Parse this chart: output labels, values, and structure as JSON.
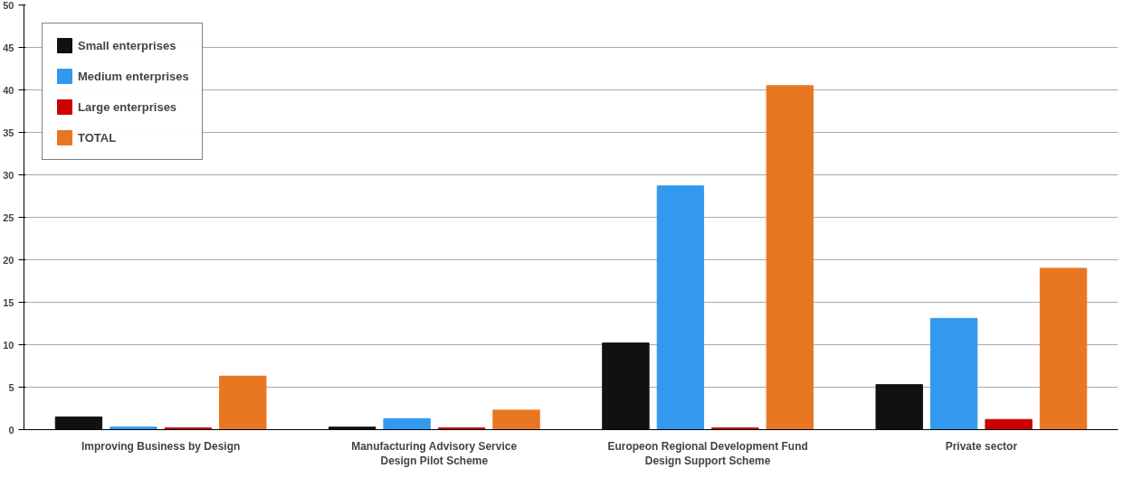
{
  "chart_data": {
    "type": "bar",
    "categories": [
      "Improving Business by Design",
      "Manufacturing Advisory Service Design Pilot Scheme",
      "Europeon Regional Development Fund Design Support Scheme",
      "Private sector"
    ],
    "series": [
      {
        "name": "Small enterprises",
        "color": "#111111",
        "values": [
          1.5,
          0.3,
          10.2,
          5.3
        ]
      },
      {
        "name": "Medium enterprises",
        "color": "#3399ee",
        "values": [
          0.3,
          1.3,
          28.7,
          13.1
        ]
      },
      {
        "name": "Large enterprises",
        "color": "#cc0000",
        "values": [
          0.2,
          0.2,
          0.2,
          1.2
        ]
      },
      {
        "name": "TOTAL",
        "color": "#e87722",
        "values": [
          6.3,
          2.3,
          40.5,
          19.0
        ]
      }
    ],
    "ylim": [
      0,
      50
    ],
    "yticks": [
      0,
      5,
      10,
      15,
      20,
      25,
      30,
      35,
      40,
      45,
      50
    ],
    "grid": "y",
    "legend": "top left"
  }
}
